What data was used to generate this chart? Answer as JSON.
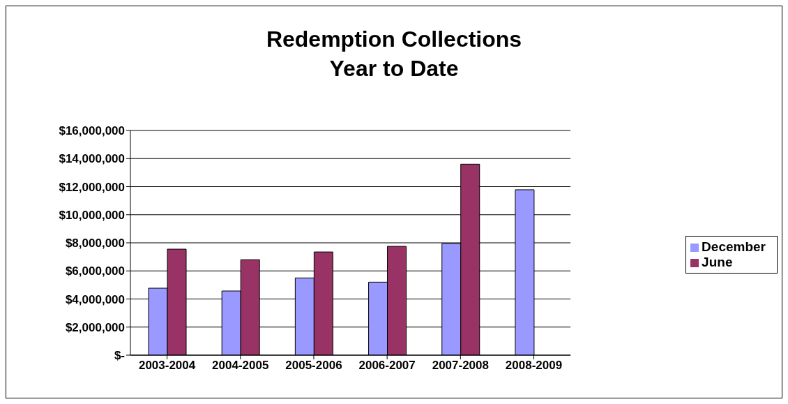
{
  "chart_data": {
    "type": "bar",
    "title": "Redemption Collections",
    "subtitle": "Year to Date",
    "categories": [
      "2003-2004",
      "2004-2005",
      "2005-2006",
      "2006-2007",
      "2007-2008",
      "2008-2009"
    ],
    "series": [
      {
        "name": "December",
        "color": "#9999ff",
        "values": [
          4770000,
          4570000,
          5500000,
          5200000,
          7950000,
          11780000
        ]
      },
      {
        "name": "June",
        "color": "#993366",
        "values": [
          7550000,
          6800000,
          7350000,
          7750000,
          13600000,
          null
        ]
      }
    ],
    "ylim": [
      0,
      16000000
    ],
    "yticks": [
      {
        "value": 0,
        "label": "$-"
      },
      {
        "value": 2000000,
        "label": "$2,000,000"
      },
      {
        "value": 4000000,
        "label": "$4,000,000"
      },
      {
        "value": 6000000,
        "label": "$6,000,000"
      },
      {
        "value": 8000000,
        "label": "$8,000,000"
      },
      {
        "value": 10000000,
        "label": "$10,000,000"
      },
      {
        "value": 12000000,
        "label": "$12,000,000"
      },
      {
        "value": 14000000,
        "label": "$14,000,000"
      },
      {
        "value": 16000000,
        "label": "$16,000,000"
      }
    ],
    "grid": "y",
    "legend": "right"
  }
}
